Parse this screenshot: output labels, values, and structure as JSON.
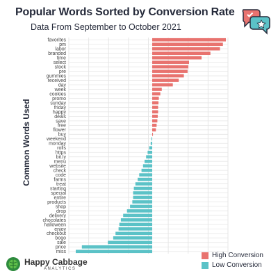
{
  "header": {
    "title": "Popular Words Sorted by Conversion Rate",
    "subtitle": "Data From September to October 2021"
  },
  "branding": {
    "name": "Happy Cabbage",
    "sub": "ANALYTICS",
    "logo_icon": "cabbage-icon",
    "corner_icon": "chat-bubbles-icon"
  },
  "colors": {
    "high": "#e8736f",
    "low": "#5bc2c7",
    "grid": "#e6e6e6",
    "text": "#262b3b"
  },
  "legend": {
    "items": [
      {
        "label": "High Conversion",
        "color": "#e8736f"
      },
      {
        "label": "Low Conversion",
        "color": "#5bc2c7"
      }
    ]
  },
  "chart_data": {
    "type": "bar",
    "orientation": "horizontal",
    "title": "Popular Words Sorted by Conversion Rate",
    "subtitle": "Data From September to October 2021",
    "ylabel": "Common Words Used",
    "xlabel": "",
    "grid": true,
    "legend_position": "bottom-right",
    "xlim": [
      -1.0,
      1.0
    ],
    "categories": [
      "favorites",
      "pm",
      "labor",
      "branded",
      "time",
      "select",
      "stock",
      "pre",
      "gummies",
      "received",
      "day",
      "week",
      "cookies",
      "promo",
      "sunday",
      "friday",
      "happy",
      "deals",
      "save",
      "free",
      "flower",
      "buy",
      "weekend",
      "monday",
      "rolls",
      "https",
      "bit.ly",
      "menu",
      "website",
      "check",
      "code",
      "farms",
      "treat",
      "starting",
      "special",
      "entire",
      "products",
      "shop",
      "drop",
      "delivery",
      "chocolates",
      "halloween",
      "enjoy",
      "checkout",
      "bogo",
      "sale",
      "price",
      "miss"
    ],
    "values": [
      1.0,
      0.96,
      0.92,
      0.79,
      0.67,
      0.5,
      0.49,
      0.48,
      0.43,
      0.36,
      0.28,
      0.13,
      0.11,
      0.09,
      0.085,
      0.08,
      0.08,
      0.075,
      0.07,
      0.06,
      0.05,
      0.01,
      -0.01,
      -0.02,
      -0.04,
      -0.06,
      -0.08,
      -0.1,
      -0.12,
      -0.14,
      -0.17,
      -0.19,
      -0.22,
      -0.24,
      -0.25,
      -0.25,
      -0.26,
      -0.29,
      -0.33,
      -0.38,
      -0.41,
      -0.43,
      -0.44,
      -0.48,
      -0.51,
      -0.58,
      -0.92,
      -1.0
    ]
  }
}
